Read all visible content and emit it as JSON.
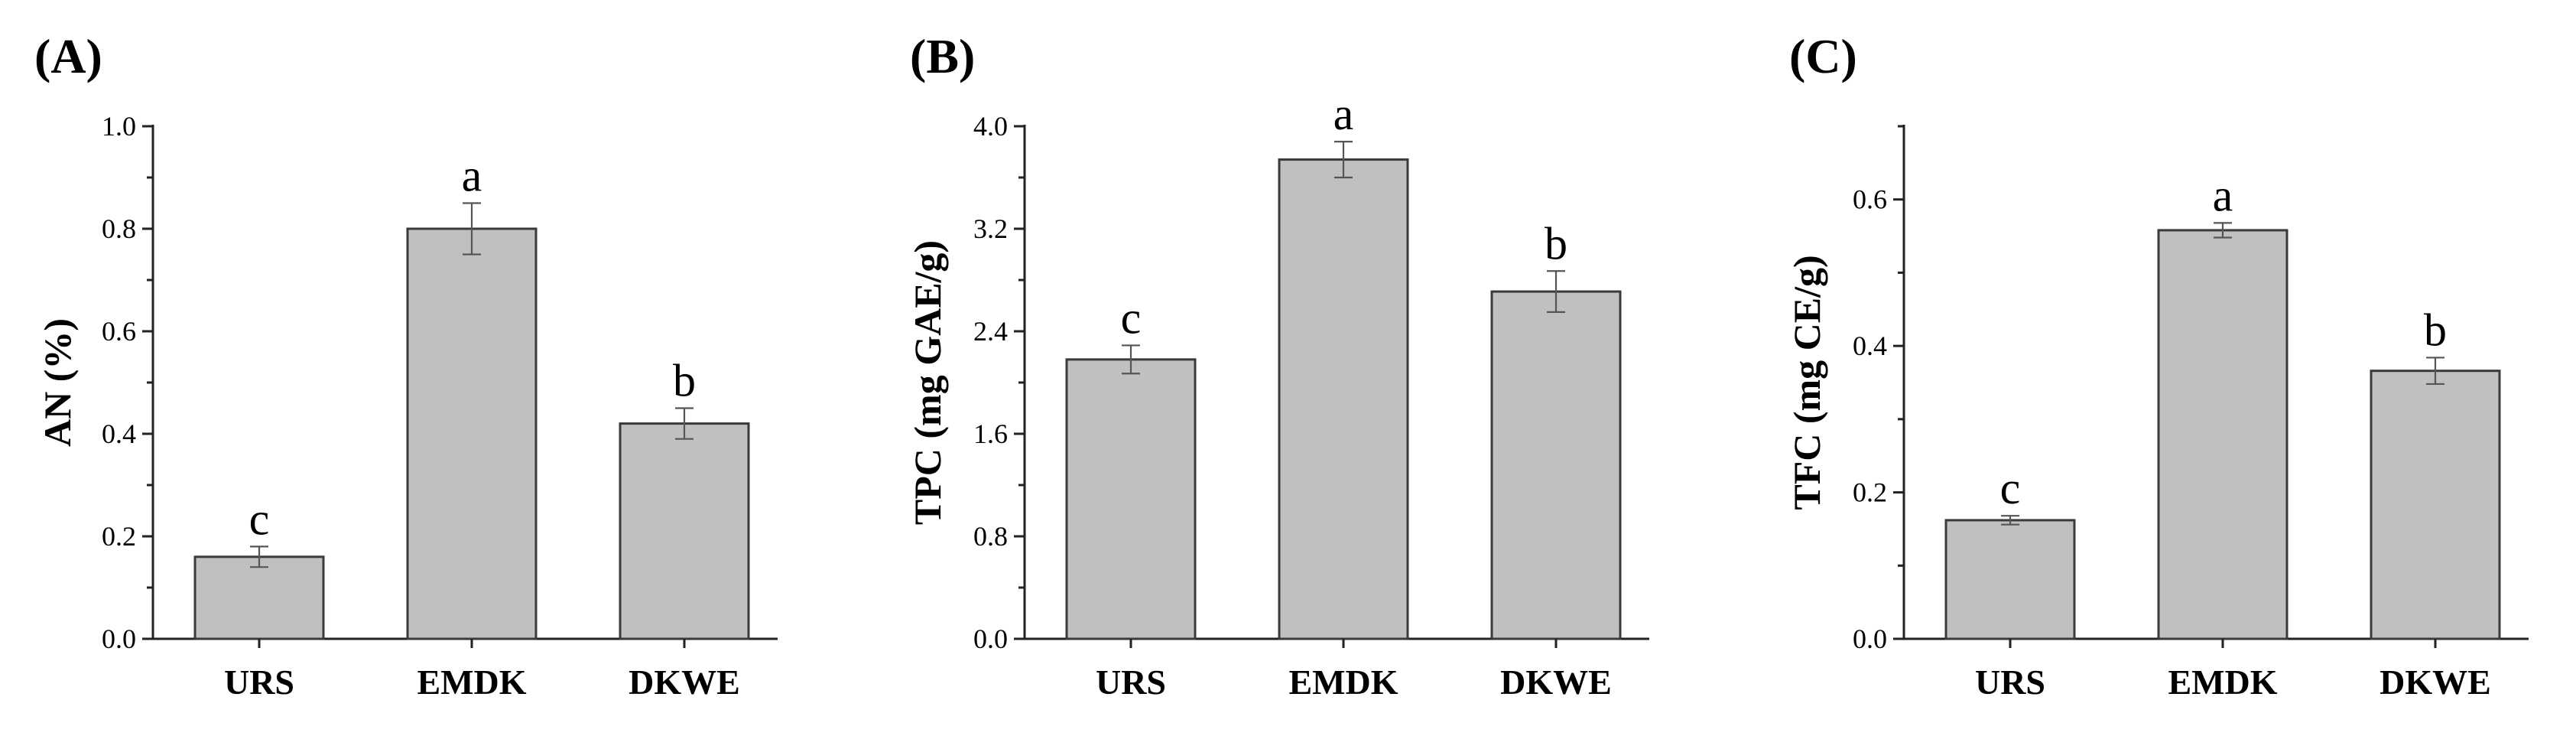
{
  "chart_data": [
    {
      "panel": "(A)",
      "type": "bar",
      "ylabel": "AN (%)",
      "xlabel": "",
      "ylim": [
        0,
        1.0
      ],
      "yticks": [
        "0.0",
        "0.2",
        "0.4",
        "0.6",
        "0.8",
        "1.0"
      ],
      "categories": [
        "URS",
        "EMDK",
        "DKWE"
      ],
      "values": [
        0.16,
        0.8,
        0.42
      ],
      "errors": [
        0.02,
        0.05,
        0.03
      ],
      "letters": [
        "c",
        "a",
        "b"
      ]
    },
    {
      "panel": "(B)",
      "type": "bar",
      "ylabel": "TPC (mg GAE/g)",
      "xlabel": "",
      "ylim": [
        0,
        4.0
      ],
      "yticks": [
        "0.0",
        "0.8",
        "1.6",
        "2.4",
        "3.2",
        "4.0"
      ],
      "categories": [
        "URS",
        "EMDK",
        "DKWE"
      ],
      "values": [
        2.18,
        3.74,
        2.71
      ],
      "errors": [
        0.11,
        0.14,
        0.16
      ],
      "letters": [
        "c",
        "a",
        "b"
      ]
    },
    {
      "panel": "(C)",
      "type": "bar",
      "ylabel": "TFC (mg CE/g)",
      "xlabel": "",
      "ylim": [
        0,
        0.7
      ],
      "yticks": [
        "0.0",
        "0.2",
        "0.4",
        "0.6"
      ],
      "categories": [
        "URS",
        "EMDK",
        "DKWE"
      ],
      "values": [
        0.162,
        0.558,
        0.366
      ],
      "errors": [
        0.006,
        0.01,
        0.018
      ],
      "letters": [
        "c",
        "a",
        "b"
      ]
    }
  ],
  "colors": {
    "bar_fill": "#c0c0c0",
    "bar_stroke": "#3a3a3a"
  }
}
